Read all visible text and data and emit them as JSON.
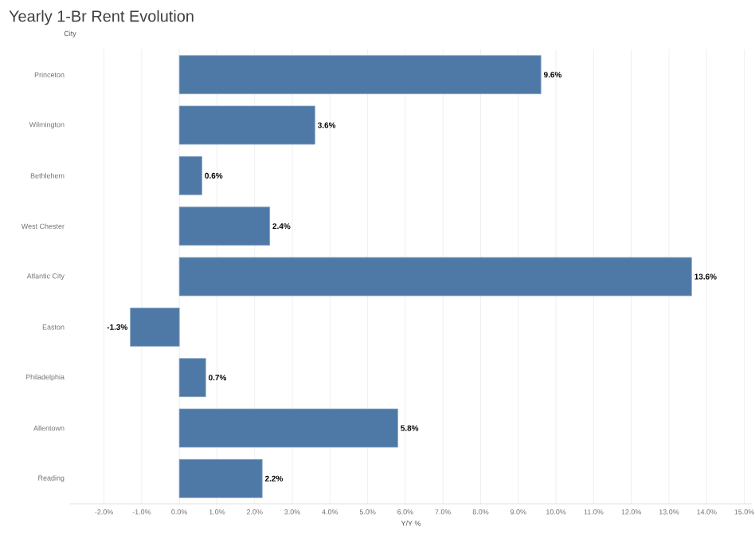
{
  "chart_data": {
    "type": "bar",
    "orientation": "horizontal",
    "title": "Yearly 1-Br Rent Evolution",
    "ylabel": "City",
    "xlabel": "Y/Y %",
    "categories": [
      "Princeton",
      "Wilmington",
      "Bethlehem",
      "West Chester",
      "Atlantic City",
      "Easton",
      "Philadelphia",
      "Allentown",
      "Reading"
    ],
    "values": [
      9.6,
      3.6,
      0.6,
      2.4,
      13.6,
      -1.3,
      0.7,
      5.8,
      2.2
    ],
    "value_labels": [
      "9.6%",
      "3.6%",
      "0.6%",
      "2.4%",
      "13.6%",
      "-1.3%",
      "0.7%",
      "5.8%",
      "2.2%"
    ],
    "color": "#4e79a7",
    "xlim": [
      -2.9,
      15.2
    ],
    "xticks": [
      {
        "value": -2,
        "label": "-2.0%"
      },
      {
        "value": -1,
        "label": "-1.0%"
      },
      {
        "value": 0,
        "label": "0.0%"
      },
      {
        "value": 1,
        "label": "1.0%"
      },
      {
        "value": 2,
        "label": "2.0%"
      },
      {
        "value": 3,
        "label": "3.0%"
      },
      {
        "value": 4,
        "label": "4.0%"
      },
      {
        "value": 5,
        "label": "5.0%"
      },
      {
        "value": 6,
        "label": "6.0%"
      },
      {
        "value": 7,
        "label": "7.0%"
      },
      {
        "value": 8,
        "label": "8.0%"
      },
      {
        "value": 9,
        "label": "9.0%"
      },
      {
        "value": 10,
        "label": "10.0%"
      },
      {
        "value": 11,
        "label": "11.0%"
      },
      {
        "value": 12,
        "label": "12.0%"
      },
      {
        "value": 13,
        "label": "13.0%"
      },
      {
        "value": 14,
        "label": "14.0%"
      },
      {
        "value": 15,
        "label": "15.0%"
      }
    ],
    "grid": "x"
  }
}
